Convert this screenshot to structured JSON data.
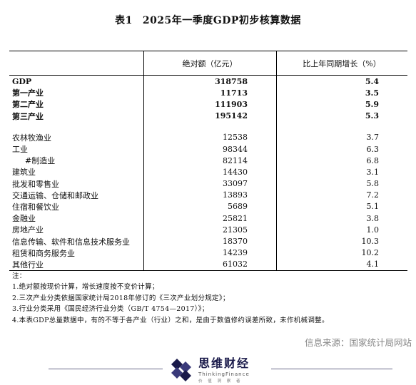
{
  "title": {
    "number": "表1",
    "text": "2025年一季度GDP初步核算数据"
  },
  "table": {
    "headers": [
      "",
      "绝对额（亿元）",
      "比上年同期增长（%）"
    ],
    "summary_rows": [
      {
        "name": "GDP",
        "value": "318758",
        "growth": "5.4"
      },
      {
        "name": "第一产业",
        "value": "11713",
        "growth": "3.5"
      },
      {
        "name": "第二产业",
        "value": "111903",
        "growth": "5.9"
      },
      {
        "name": "第三产业",
        "value": "195142",
        "growth": "5.3"
      }
    ],
    "detail_rows": [
      {
        "name": "农林牧渔业",
        "value": "12538",
        "growth": "3.7"
      },
      {
        "name": "工业",
        "value": "98344",
        "growth": "6.3"
      },
      {
        "name": "#制造业",
        "value": "82114",
        "growth": "6.8"
      },
      {
        "name": "建筑业",
        "value": "14430",
        "growth": "3.1"
      },
      {
        "name": "批发和零售业",
        "value": "33097",
        "growth": "5.8"
      },
      {
        "name": "交通运输、仓储和邮政业",
        "value": "13893",
        "growth": "7.2"
      },
      {
        "name": "住宿和餐饮业",
        "value": "5689",
        "growth": "5.1"
      },
      {
        "name": "金融业",
        "value": "25821",
        "growth": "3.8"
      },
      {
        "name": "房地产业",
        "value": "21305",
        "growth": "1.0"
      },
      {
        "name": "信息传输、软件和信息技术服务业",
        "value": "18370",
        "growth": "10.3"
      },
      {
        "name": "租赁和商务服务业",
        "value": "14239",
        "growth": "10.2"
      },
      {
        "name": "其他行业",
        "value": "61032",
        "growth": "4.1"
      }
    ]
  },
  "notes": {
    "heading": "注：",
    "items": [
      "1.绝对额按现价计算，增长速度按不变价计算；",
      "2.三次产业分类依据国家统计局2018年修订的《三次产业划分规定》；",
      "3.行业分类采用《国民经济行业分类（GB/T 4754—2017）》；",
      "4.本表GDP总量数据中，有的不等于各产业（行业）之和，是由于数值修约误差所致，未作机械调整。"
    ]
  },
  "source": "信息来源：国家统计局网站",
  "logo": {
    "name_cn": "思维财经",
    "name_en": "ThinkingFinance",
    "tagline": "价 值 洞 察 者"
  },
  "colors": {
    "logo_primary": "#1a1a4a",
    "source_text": "#888888"
  }
}
